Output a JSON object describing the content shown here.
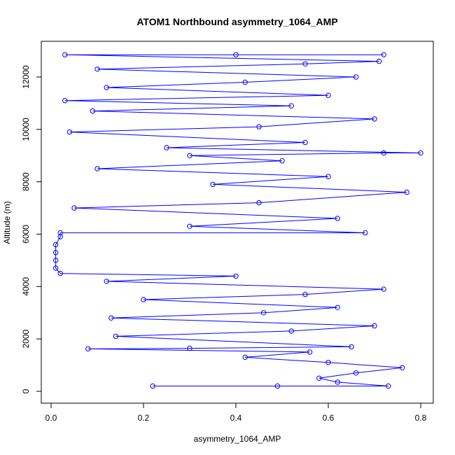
{
  "chart_data": {
    "type": "line",
    "title": "ATOM1 Northbound asymmetry_1064_AMP",
    "xlabel": "asymmetry_1064_AMP",
    "ylabel": "Altitude (m)",
    "xlim": [
      0.0,
      0.8
    ],
    "ylim": [
      0,
      12800
    ],
    "x_ticks": [
      0.0,
      0.2,
      0.4,
      0.6,
      0.8
    ],
    "x_tick_labels": [
      "0.0",
      "0.2",
      "0.4",
      "0.6",
      "0.8"
    ],
    "y_ticks": [
      0,
      2000,
      4000,
      6000,
      8000,
      10000,
      12000
    ],
    "y_tick_labels": [
      "0",
      "2000",
      "4000",
      "6000",
      "8000",
      "10000",
      "12000"
    ],
    "grid": false,
    "marker": "open-circle",
    "series": [
      {
        "color": "#0000ff",
        "points": [
          [
            0.22,
            200
          ],
          [
            0.49,
            200
          ],
          [
            0.73,
            200
          ],
          [
            0.62,
            350
          ],
          [
            0.58,
            500
          ],
          [
            0.66,
            700
          ],
          [
            0.76,
            900
          ],
          [
            0.6,
            1100
          ],
          [
            0.42,
            1300
          ],
          [
            0.56,
            1500
          ],
          [
            0.08,
            1620
          ],
          [
            0.3,
            1640
          ],
          [
            0.65,
            1700
          ],
          [
            0.14,
            2100
          ],
          [
            0.52,
            2300
          ],
          [
            0.7,
            2500
          ],
          [
            0.13,
            2800
          ],
          [
            0.46,
            3000
          ],
          [
            0.62,
            3200
          ],
          [
            0.2,
            3500
          ],
          [
            0.55,
            3700
          ],
          [
            0.72,
            3900
          ],
          [
            0.12,
            4200
          ],
          [
            0.4,
            4400
          ],
          [
            0.02,
            4500
          ],
          [
            0.01,
            4700
          ],
          [
            0.01,
            5000
          ],
          [
            0.01,
            5300
          ],
          [
            0.01,
            5600
          ],
          [
            0.02,
            5900
          ],
          [
            0.02,
            6050
          ],
          [
            0.68,
            6050
          ],
          [
            0.3,
            6300
          ],
          [
            0.62,
            6600
          ],
          [
            0.05,
            7000
          ],
          [
            0.45,
            7200
          ],
          [
            0.77,
            7600
          ],
          [
            0.35,
            7900
          ],
          [
            0.6,
            8200
          ],
          [
            0.1,
            8500
          ],
          [
            0.5,
            8800
          ],
          [
            0.3,
            9000
          ],
          [
            0.72,
            9100
          ],
          [
            0.8,
            9100
          ],
          [
            0.25,
            9300
          ],
          [
            0.55,
            9500
          ],
          [
            0.04,
            9900
          ],
          [
            0.45,
            10100
          ],
          [
            0.7,
            10400
          ],
          [
            0.09,
            10700
          ],
          [
            0.52,
            10900
          ],
          [
            0.03,
            11100
          ],
          [
            0.6,
            11300
          ],
          [
            0.12,
            11600
          ],
          [
            0.42,
            11800
          ],
          [
            0.66,
            12000
          ],
          [
            0.1,
            12300
          ],
          [
            0.55,
            12500
          ],
          [
            0.71,
            12600
          ],
          [
            0.03,
            12850
          ],
          [
            0.4,
            12850
          ],
          [
            0.72,
            12850
          ]
        ]
      }
    ]
  }
}
